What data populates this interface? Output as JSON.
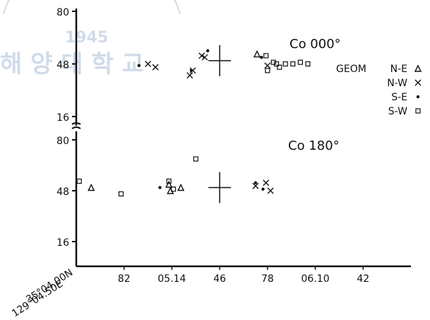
{
  "watermark": {
    "year": "1945",
    "text": "해 양 대 학 교"
  },
  "colors": {
    "ink": "#111111",
    "watermark": "#5a7fb8"
  },
  "chart_data": {
    "type": "scatter",
    "x_ticks": [
      "82",
      "05.14",
      "46",
      "78",
      "06.10",
      "42"
    ],
    "x_ticks_decoded": [
      82,
      114,
      146,
      178,
      210,
      242
    ],
    "x_origin_label": [
      "35°04.00N",
      "129°04.50E"
    ],
    "xlim": [
      50,
      274
    ],
    "panels": [
      {
        "title": "Co 000°",
        "y_ticks": [
          "80",
          "48",
          "16"
        ],
        "ylim": [
          16,
          80
        ],
        "geom_center": [
          146,
          50
        ],
        "series": [
          {
            "name": "N-E",
            "marker": "triangle",
            "points": [
              [
                171,
                54
              ]
            ]
          },
          {
            "name": "N-W",
            "marker": "x",
            "points": [
              [
                98,
                48
              ],
              [
                103,
                46
              ],
              [
                126,
                41
              ],
              [
                128,
                44
              ],
              [
                134,
                53
              ],
              [
                136,
                52
              ],
              [
                178,
                47
              ]
            ]
          },
          {
            "name": "S-E",
            "marker": "dot",
            "points": [
              [
                92,
                47
              ],
              [
                127,
                44
              ],
              [
                138,
                56
              ],
              [
                174,
                52
              ]
            ]
          },
          {
            "name": "S-W",
            "marker": "square",
            "points": [
              [
                177,
                53
              ],
              [
                182,
                49
              ],
              [
                178,
                44
              ],
              [
                184,
                48
              ],
              [
                186,
                46
              ],
              [
                190,
                48
              ],
              [
                195,
                48
              ],
              [
                200,
                49
              ],
              [
                205,
                48
              ]
            ]
          }
        ]
      },
      {
        "title": "Co 180°",
        "y_ticks": [
          "80",
          "48",
          "16"
        ],
        "ylim": [
          16,
          80
        ],
        "geom_center": [
          146,
          50
        ],
        "series": [
          {
            "name": "N-E",
            "marker": "triangle",
            "points": [
              [
                60,
                50
              ],
              [
                112,
                52
              ],
              [
                113,
                48
              ],
              [
                120,
                50
              ]
            ]
          },
          {
            "name": "N-W",
            "marker": "x",
            "points": [
              [
                170,
                51
              ],
              [
                177,
                53
              ],
              [
                180,
                48
              ]
            ]
          },
          {
            "name": "S-E",
            "marker": "dot",
            "points": [
              [
                106,
                50
              ],
              [
                170,
                53
              ],
              [
                175,
                49
              ]
            ]
          },
          {
            "name": "S-W",
            "marker": "square",
            "points": [
              [
                52,
                54
              ],
              [
                80,
                46
              ],
              [
                112,
                54
              ],
              [
                115,
                49
              ],
              [
                130,
                68
              ]
            ]
          }
        ]
      }
    ],
    "legend": {
      "title": "GEOM",
      "entries": [
        {
          "name": "N-E",
          "marker": "triangle"
        },
        {
          "name": "N-W",
          "marker": "x"
        },
        {
          "name": "S-E",
          "marker": "dot"
        },
        {
          "name": "S-W",
          "marker": "square"
        }
      ]
    }
  }
}
